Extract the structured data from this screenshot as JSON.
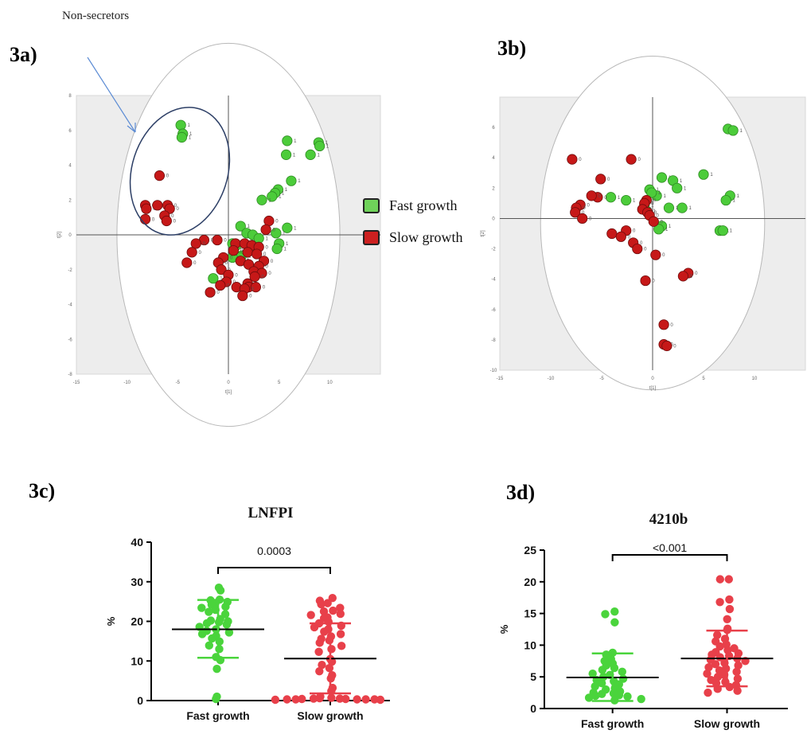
{
  "annotation": {
    "text": "Non-secretors"
  },
  "panels": {
    "a": "3a)",
    "b": "3b)",
    "c": "3c)",
    "d": "3d)"
  },
  "legend": [
    {
      "label": "Fast growth",
      "color": "#6fd25a"
    },
    {
      "label": "Slow growth",
      "color": "#cc2020"
    }
  ],
  "colors": {
    "fast": "#4ad43c",
    "slow": "#e8404a",
    "pca_fast": "#4ccc3a",
    "pca_slow": "#c61818"
  },
  "chart_data": [
    {
      "type": "scatter",
      "panel": "3a)",
      "xlim": [
        -15,
        15
      ],
      "ylim": [
        -8,
        8
      ],
      "x_ticks": [
        "-15",
        "-10",
        "-5",
        "0",
        "5",
        "10"
      ],
      "y_ticks": [
        "8",
        "6",
        "4",
        "2",
        "0",
        "-2",
        "-4",
        "-6",
        "-8"
      ],
      "xlabel": "t[1]",
      "ylabel": "t[2]",
      "series": [
        {
          "name": "Fast growth",
          "points": [
            [
              -4.7,
              6.3
            ],
            [
              -4.5,
              5.8
            ],
            [
              -4.6,
              5.6
            ],
            [
              5.8,
              5.4
            ],
            [
              8.9,
              5.3
            ],
            [
              9.0,
              5.1
            ],
            [
              5.7,
              4.6
            ],
            [
              8.1,
              4.6
            ],
            [
              6.2,
              3.1
            ],
            [
              4.9,
              2.6
            ],
            [
              4.6,
              2.4
            ],
            [
              4.3,
              2.2
            ],
            [
              3.3,
              2.0
            ],
            [
              1.2,
              0.5
            ],
            [
              5.8,
              0.4
            ],
            [
              1.8,
              0.1
            ],
            [
              2.4,
              0.0
            ],
            [
              3.0,
              -0.2
            ],
            [
              4.7,
              0.1
            ],
            [
              5.0,
              -0.5
            ],
            [
              0.4,
              -0.5
            ],
            [
              0.8,
              -0.6
            ],
            [
              1.3,
              -1.2
            ],
            [
              1.1,
              -1.3
            ],
            [
              0.4,
              -1.3
            ],
            [
              -1.5,
              -2.5
            ],
            [
              4.8,
              -0.8
            ]
          ]
        },
        {
          "name": "Slow growth",
          "points": [
            [
              -6.8,
              3.4
            ],
            [
              -8.2,
              1.7
            ],
            [
              -8.1,
              1.5
            ],
            [
              -7.0,
              1.7
            ],
            [
              -6.0,
              1.7
            ],
            [
              -5.8,
              1.5
            ],
            [
              -6.3,
              1.1
            ],
            [
              -6.1,
              0.8
            ],
            [
              -8.2,
              0.9
            ],
            [
              4.0,
              0.8
            ],
            [
              3.7,
              0.3
            ],
            [
              -1.1,
              -0.3
            ],
            [
              -2.4,
              -0.3
            ],
            [
              -3.2,
              -0.5
            ],
            [
              0.7,
              -0.5
            ],
            [
              1.6,
              -0.5
            ],
            [
              2.3,
              -0.6
            ],
            [
              3.0,
              -0.7
            ],
            [
              -3.6,
              -1.0
            ],
            [
              0.5,
              -0.9
            ],
            [
              1.9,
              -1.0
            ],
            [
              2.8,
              -1.1
            ],
            [
              -0.5,
              -1.3
            ],
            [
              1.2,
              -1.5
            ],
            [
              3.5,
              -1.5
            ],
            [
              -4.1,
              -1.6
            ],
            [
              -1.0,
              -1.6
            ],
            [
              2.0,
              -1.7
            ],
            [
              3.0,
              -1.8
            ],
            [
              -0.7,
              -2.0
            ],
            [
              2.5,
              -2.1
            ],
            [
              3.3,
              -2.2
            ],
            [
              0.0,
              -2.3
            ],
            [
              2.6,
              -2.4
            ],
            [
              -0.2,
              -2.7
            ],
            [
              1.9,
              -2.8
            ],
            [
              -0.8,
              -2.9
            ],
            [
              2.0,
              -3.0
            ],
            [
              0.8,
              -3.0
            ],
            [
              2.7,
              -3.0
            ],
            [
              1.6,
              -3.1
            ],
            [
              -1.8,
              -3.3
            ],
            [
              1.4,
              -3.5
            ]
          ]
        }
      ]
    },
    {
      "type": "scatter",
      "panel": "3b)",
      "xlim": [
        -15,
        15
      ],
      "ylim": [
        -10,
        8
      ],
      "x_ticks": [
        "-15",
        "-10",
        "-5",
        "0",
        "5",
        "10"
      ],
      "y_ticks": [
        "6",
        "4",
        "2",
        "0",
        "-2",
        "-4",
        "-6",
        "-8",
        "-10"
      ],
      "xlabel": "t[1]",
      "ylabel": "t[2]",
      "series": [
        {
          "name": "Fast growth",
          "points": [
            [
              7.4,
              5.9
            ],
            [
              7.9,
              5.8
            ],
            [
              5.0,
              2.9
            ],
            [
              0.9,
              2.7
            ],
            [
              2.0,
              2.5
            ],
            [
              2.4,
              2.0
            ],
            [
              7.6,
              1.5
            ],
            [
              7.2,
              1.2
            ],
            [
              -0.3,
              1.9
            ],
            [
              -2.6,
              1.2
            ],
            [
              -4.1,
              1.4
            ],
            [
              2.9,
              0.7
            ],
            [
              1.6,
              0.7
            ],
            [
              0.4,
              1.5
            ],
            [
              -0.6,
              0.5
            ],
            [
              6.6,
              -0.8
            ],
            [
              6.9,
              -0.8
            ],
            [
              0.9,
              -0.5
            ],
            [
              0.6,
              -0.7
            ],
            [
              -0.1,
              1.7
            ],
            [
              -0.8,
              0.9
            ]
          ]
        },
        {
          "name": "Slow growth",
          "points": [
            [
              -7.9,
              3.9
            ],
            [
              -2.1,
              3.9
            ],
            [
              -5.1,
              2.6
            ],
            [
              -5.4,
              1.4
            ],
            [
              -6.0,
              1.5
            ],
            [
              -0.6,
              1.2
            ],
            [
              -0.8,
              1.0
            ],
            [
              -7.1,
              0.9
            ],
            [
              -7.5,
              0.7
            ],
            [
              -1.0,
              0.6
            ],
            [
              -0.5,
              0.4
            ],
            [
              -7.6,
              0.4
            ],
            [
              -6.9,
              0.0
            ],
            [
              -0.3,
              0.2
            ],
            [
              0.1,
              -0.2
            ],
            [
              -4.0,
              -1.0
            ],
            [
              -2.6,
              -0.8
            ],
            [
              -3.1,
              -1.2
            ],
            [
              -1.9,
              -1.6
            ],
            [
              -1.5,
              -2.0
            ],
            [
              0.3,
              -2.4
            ],
            [
              3.5,
              -3.6
            ],
            [
              3.0,
              -3.8
            ],
            [
              -0.7,
              -4.1
            ],
            [
              1.1,
              -7.0
            ],
            [
              1.1,
              -8.3
            ],
            [
              1.4,
              -8.4
            ]
          ]
        }
      ]
    },
    {
      "type": "scatter",
      "panel": "3c)",
      "title": "LNFPI",
      "ylabel": "%",
      "ylim": [
        0,
        40
      ],
      "y_ticks": [
        "0",
        "10",
        "20",
        "30",
        "40"
      ],
      "categories": [
        "Fast growth",
        "Slow growth"
      ],
      "annotation": "0.0003",
      "series": [
        {
          "name": "Fast growth",
          "mean": 18,
          "sd_low": 10.8,
          "sd_high": 25.4,
          "values": [
            28.5,
            27.8,
            25.5,
            25.3,
            24.9,
            24.6,
            24.2,
            23.7,
            23.4,
            22.9,
            22.4,
            21.8,
            20.6,
            20.2,
            20.0,
            19.8,
            19.5,
            19.2,
            18.6,
            18.0,
            17.6,
            17.2,
            16.8,
            16.3,
            15.7,
            14.9,
            13.9,
            13.0,
            11.0,
            10.2,
            8.0,
            1.0,
            0.4
          ]
        },
        {
          "name": "Slow growth",
          "mean": 10.6,
          "sd_low": 1.8,
          "sd_high": 19.5,
          "values": [
            25.9,
            25.2,
            24.6,
            24.3,
            23.4,
            22.7,
            22.5,
            21.9,
            21.6,
            21.0,
            20.8,
            19.9,
            19.5,
            18.9,
            18.5,
            18.0,
            17.4,
            16.8,
            16.2,
            15.6,
            15.2,
            14.6,
            13.8,
            13.0,
            12.3,
            10.5,
            9.8,
            9.0,
            8.2,
            7.4,
            6.4,
            5.6,
            3.2,
            2.4,
            1.0,
            0.7,
            0.6,
            0.5,
            0.5,
            0.4,
            0.4,
            0.3,
            0.3,
            0.3,
            0.3,
            0.3,
            0.2,
            0.2
          ]
        }
      ]
    },
    {
      "type": "scatter",
      "panel": "3d)",
      "title": "4210b",
      "ylabel": "%",
      "ylim": [
        0,
        25
      ],
      "y_ticks": [
        "0",
        "5",
        "10",
        "15",
        "20",
        "25"
      ],
      "categories": [
        "Fast growth",
        "Slow growth"
      ],
      "annotation": "<0.001",
      "series": [
        {
          "name": "Fast growth",
          "mean": 4.9,
          "sd_low": 1.2,
          "sd_high": 8.7,
          "values": [
            15.3,
            14.9,
            13.6,
            8.8,
            8.5,
            7.8,
            7.5,
            7.1,
            6.8,
            6.4,
            6.1,
            5.8,
            5.5,
            5.3,
            5.0,
            4.7,
            4.5,
            4.3,
            4.0,
            3.8,
            3.5,
            3.2,
            3.0,
            2.7,
            2.5,
            2.4,
            2.3,
            2.1,
            2.0,
            1.9,
            1.7,
            1.5,
            1.3
          ]
        },
        {
          "name": "Slow growth",
          "mean": 7.9,
          "sd_low": 3.5,
          "sd_high": 12.3,
          "values": [
            20.4,
            20.4,
            17.2,
            16.8,
            15.7,
            14.1,
            12.6,
            12.4,
            11.6,
            11.0,
            10.6,
            10.1,
            9.8,
            9.5,
            9.2,
            8.9,
            8.7,
            8.5,
            8.3,
            8.1,
            7.9,
            7.7,
            7.5,
            7.2,
            7.0,
            6.8,
            6.5,
            6.3,
            6.0,
            5.8,
            5.5,
            5.3,
            5.0,
            4.7,
            4.5,
            4.2,
            4.0,
            3.7,
            3.4,
            3.1,
            2.8,
            2.5
          ]
        }
      ]
    }
  ]
}
